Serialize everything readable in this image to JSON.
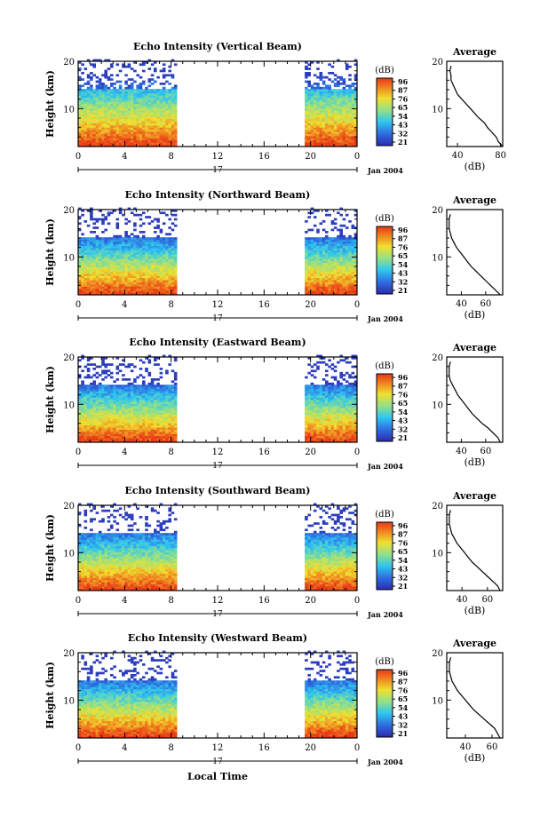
{
  "shared": {
    "xlabel": "Local Time",
    "ylabel": "Height (km)",
    "date_day": "17",
    "date_label": "Jan 2004",
    "colorbar_unit": "(dB)",
    "colorbar_ticks": [
      "96",
      "87",
      "76",
      "65",
      "54",
      "43",
      "32",
      "21"
    ],
    "profile_title": "Average",
    "profile_xlabel": "(dB)",
    "data_gap_hours": [
      8.5,
      19.5
    ],
    "colors": {
      "low": "#2b2bb0",
      "mid_low": "#2ec6f0",
      "mid": "#8fe08a",
      "mid_high": "#f0e030",
      "high": "#e83818"
    }
  },
  "chart_data": [
    {
      "type": "heatmap",
      "title": "Echo Intensity (Vertical Beam)",
      "xlabel": "",
      "ylabel": "Height (km)",
      "x_ticks": [
        "0",
        "4",
        "8",
        "12",
        "16",
        "20",
        "0"
      ],
      "xlim": [
        0,
        24
      ],
      "ylim": [
        2,
        20
      ],
      "y_ticks": [
        "20",
        "10"
      ],
      "colorbar_range": [
        21,
        96
      ],
      "profile": {
        "xlim": [
          30,
          82
        ],
        "x_ticks": [
          "40",
          "80"
        ],
        "heights": [
          2,
          3,
          4,
          5,
          6,
          7,
          8,
          9,
          10,
          11,
          12,
          13,
          14,
          15,
          16,
          17,
          18,
          19
        ],
        "values": [
          82,
          78,
          76,
          72,
          68,
          65,
          60,
          56,
          52,
          48,
          44,
          40,
          38,
          36,
          34,
          34,
          33,
          34
        ]
      }
    },
    {
      "type": "heatmap",
      "title": "Echo Intensity (Northward Beam)",
      "xlabel": "",
      "ylabel": "Height (km)",
      "x_ticks": [
        "0",
        "4",
        "8",
        "12",
        "16",
        "20",
        "0"
      ],
      "xlim": [
        0,
        24
      ],
      "ylim": [
        2,
        20
      ],
      "y_ticks": [
        "20",
        "10"
      ],
      "colorbar_range": [
        21,
        96
      ],
      "profile": {
        "xlim": [
          28,
          74
        ],
        "x_ticks": [
          "40",
          "60"
        ],
        "heights": [
          2,
          3,
          4,
          5,
          6,
          7,
          8,
          9,
          10,
          11,
          12,
          13,
          14,
          15,
          16,
          17,
          18,
          19
        ],
        "values": [
          72,
          68,
          64,
          60,
          56,
          52,
          48,
          45,
          42,
          39,
          36,
          34,
          32,
          31,
          30,
          30,
          30,
          31
        ]
      }
    },
    {
      "type": "heatmap",
      "title": "Echo Intensity (Eastward Beam)",
      "xlabel": "",
      "ylabel": "Height (km)",
      "x_ticks": [
        "0",
        "4",
        "8",
        "12",
        "16",
        "20",
        "0"
      ],
      "xlim": [
        0,
        24
      ],
      "ylim": [
        2,
        20
      ],
      "y_ticks": [
        "20",
        "10"
      ],
      "colorbar_range": [
        21,
        96
      ],
      "profile": {
        "xlim": [
          28,
          74
        ],
        "x_ticks": [
          "40",
          "60"
        ],
        "heights": [
          2,
          3,
          4,
          5,
          6,
          7,
          8,
          9,
          10,
          11,
          12,
          13,
          14,
          15,
          16,
          17,
          18,
          19
        ],
        "values": [
          72,
          70,
          66,
          62,
          57,
          53,
          49,
          46,
          43,
          40,
          37,
          35,
          33,
          31,
          30,
          30,
          30,
          31
        ]
      }
    },
    {
      "type": "heatmap",
      "title": "Echo Intensity (Southward Beam)",
      "xlabel": "",
      "ylabel": "Height (km)",
      "x_ticks": [
        "0",
        "4",
        "8",
        "12",
        "16",
        "20",
        "0"
      ],
      "xlim": [
        0,
        24
      ],
      "ylim": [
        2,
        20
      ],
      "y_ticks": [
        "20",
        "10"
      ],
      "colorbar_range": [
        21,
        96
      ],
      "profile": {
        "xlim": [
          28,
          72
        ],
        "x_ticks": [
          "40",
          "60"
        ],
        "heights": [
          2,
          3,
          4,
          5,
          6,
          7,
          8,
          9,
          10,
          11,
          12,
          13,
          14,
          15,
          16,
          17,
          18,
          19
        ],
        "values": [
          70,
          68,
          64,
          60,
          56,
          52,
          48,
          45,
          42,
          39,
          36,
          34,
          32,
          31,
          30,
          30,
          30,
          31
        ]
      }
    },
    {
      "type": "heatmap",
      "title": "Echo Intensity (Westward Beam)",
      "xlabel": "Local Time",
      "ylabel": "Height (km)",
      "x_ticks": [
        "0",
        "4",
        "8",
        "12",
        "16",
        "20",
        "0"
      ],
      "xlim": [
        0,
        24
      ],
      "ylim": [
        2,
        20
      ],
      "y_ticks": [
        "20",
        "10"
      ],
      "colorbar_range": [
        21,
        96
      ],
      "profile": {
        "xlim": [
          26,
          68
        ],
        "x_ticks": [
          "40",
          "60"
        ],
        "heights": [
          2,
          3,
          4,
          5,
          6,
          7,
          8,
          9,
          10,
          11,
          12,
          13,
          14,
          15,
          16,
          17,
          18,
          19
        ],
        "values": [
          66,
          64,
          62,
          58,
          54,
          50,
          46,
          43,
          40,
          37,
          34,
          32,
          30,
          29,
          28,
          28,
          28,
          29
        ]
      }
    }
  ]
}
